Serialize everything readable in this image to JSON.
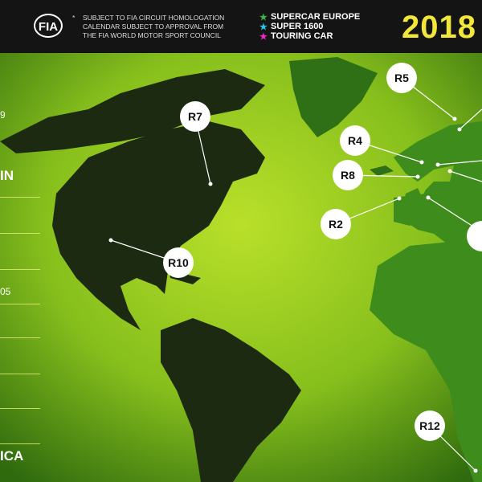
{
  "header": {
    "fia_logo": "FIA",
    "note_bullet": "*",
    "note_lines": [
      "SUBJECT TO FIA CIRCUIT HOMOLOGATION",
      "CALENDAR SUBJECT TO APPROVAL FROM",
      "THE FIA WORLD MOTOR SPORT COUNCIL"
    ],
    "legend": [
      {
        "label": "SUPERCAR EUROPE",
        "color": "#3cb44a",
        "icon": "star-icon"
      },
      {
        "label": "SUPER 1600",
        "color": "#29c3ec",
        "icon": "star-icon"
      },
      {
        "label": "TOURING CAR",
        "color": "#ec2bc9",
        "icon": "star-icon"
      }
    ],
    "year": "2018"
  },
  "side_panel": {
    "fragments": [
      "9",
      "IN",
      "05",
      "ICA"
    ]
  },
  "markers": [
    {
      "label": "R7"
    },
    {
      "label": "R5"
    },
    {
      "label": "R4"
    },
    {
      "label": "R8"
    },
    {
      "label": "R2"
    },
    {
      "label": "R10"
    },
    {
      "label": "R12"
    }
  ],
  "colors": {
    "background": "#8fc41c",
    "americas": "#1d2a12",
    "europe_africa": "#3e8d1c",
    "year": "#f2e63a"
  }
}
